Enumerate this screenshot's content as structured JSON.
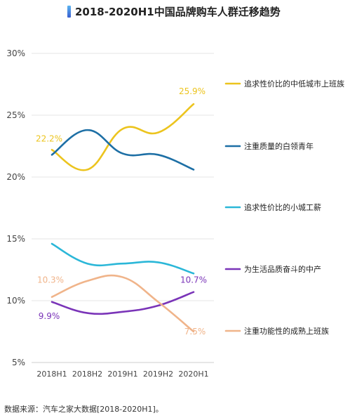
{
  "title": "2018-2020H1中国品牌购车人群迁移趋势",
  "source": "数据来源：汽车之家大数据[2018-2020H1]。",
  "chart_data": {
    "type": "line",
    "title": "2018-2020H1中国品牌购车人群迁移趋势",
    "xlabel": "",
    "ylabel": "",
    "categories": [
      "2018H1",
      "2018H2",
      "2019H1",
      "2019H2",
      "2020H1"
    ],
    "ylim": [
      5,
      30
    ],
    "yticks": [
      "5%",
      "10%",
      "15%",
      "20%",
      "25%",
      "30%"
    ],
    "grid": "horizontal",
    "legend_position": "right",
    "series": [
      {
        "name": "追求性价比的中低城市上班族",
        "color": "#ecc41e",
        "values": [
          22.2,
          20.6,
          23.9,
          23.6,
          25.9
        ]
      },
      {
        "name": "注重质量的白领青年",
        "color": "#1d6fa5",
        "values": [
          21.8,
          23.8,
          21.9,
          21.8,
          20.6
        ]
      },
      {
        "name": "追求性价比的小城工薪",
        "color": "#2bb7d8",
        "values": [
          14.6,
          13.0,
          13.0,
          13.1,
          12.2
        ]
      },
      {
        "name": "为生活品质奋斗的中产",
        "color": "#7a34b8",
        "values": [
          9.9,
          9.0,
          9.1,
          9.6,
          10.7
        ]
      },
      {
        "name": "注重功能性的成熟上班族",
        "color": "#f0b48a",
        "values": [
          10.3,
          11.6,
          11.9,
          9.9,
          7.5
        ]
      }
    ],
    "data_labels": [
      {
        "series": 0,
        "index": 0,
        "text": "22.2%"
      },
      {
        "series": 0,
        "index": 4,
        "text": "25.9%"
      },
      {
        "series": 3,
        "index": 0,
        "text": "9.9%"
      },
      {
        "series": 3,
        "index": 4,
        "text": "10.7%"
      },
      {
        "series": 4,
        "index": 0,
        "text": "10.3%"
      },
      {
        "series": 4,
        "index": 4,
        "text": "7.5%"
      }
    ]
  }
}
